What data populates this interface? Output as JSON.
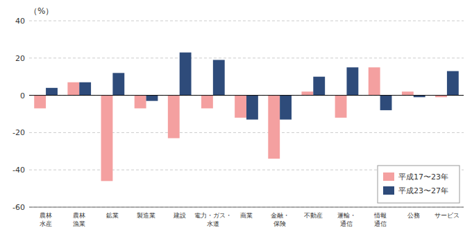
{
  "chart_data": {
    "type": "bar",
    "y_label": "（%）",
    "categories": [
      "農林\n水産",
      "農林\n漁業",
      "鉱業",
      "製造業",
      "建設",
      "電力・ガス・\n水道",
      "商業",
      "金融・\n保険",
      "不動産",
      "運輸・\n通信",
      "情報\n通信",
      "公務",
      "サービス"
    ],
    "series": [
      {
        "name": "平成17〜23年",
        "color": "#F4A0A0",
        "values": [
          -7,
          7,
          -46,
          -7,
          -23,
          -7,
          -12,
          -34,
          2,
          -12,
          15,
          2,
          -1
        ]
      },
      {
        "name": "平成23〜27年",
        "color": "#2E4B7A",
        "values": [
          4,
          7,
          12,
          -3,
          23,
          19,
          -13,
          -13,
          10,
          15,
          -8,
          -1,
          13
        ]
      }
    ],
    "ylim": [
      -60,
      40
    ],
    "yticks": [
      -60,
      -40,
      -20,
      0,
      20,
      40
    ],
    "grid": true,
    "legend": "lower right"
  }
}
